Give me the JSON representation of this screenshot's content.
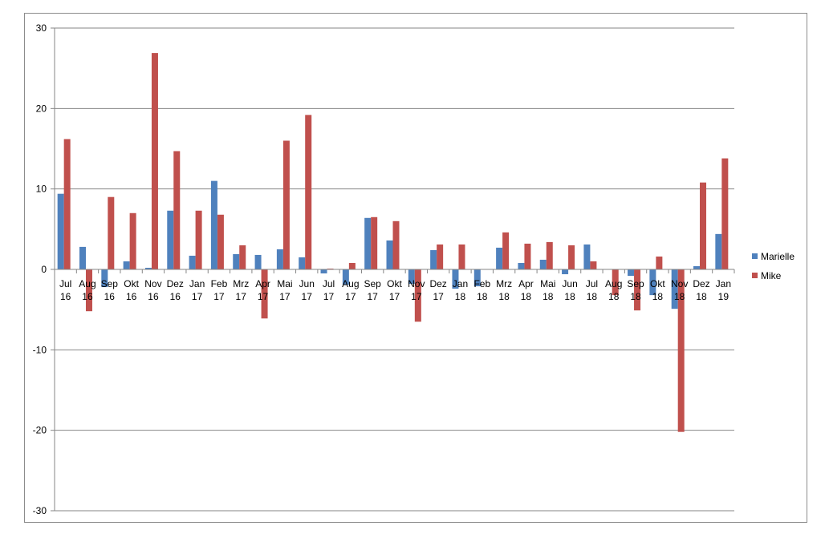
{
  "chart_data": {
    "type": "bar",
    "title": "",
    "xlabel": "",
    "ylabel": "",
    "ylim": [
      -30,
      30
    ],
    "yticks": [
      30,
      20,
      10,
      0,
      -10,
      -20,
      -30
    ],
    "grid": true,
    "legend_position": "right",
    "categories": [
      [
        "Jul",
        "16"
      ],
      [
        "Aug",
        "16"
      ],
      [
        "Sep",
        "16"
      ],
      [
        "Okt",
        "16"
      ],
      [
        "Nov",
        "16"
      ],
      [
        "Dez",
        "16"
      ],
      [
        "Jan",
        "17"
      ],
      [
        "Feb",
        "17"
      ],
      [
        "Mrz",
        "17"
      ],
      [
        "Apr",
        "17"
      ],
      [
        "Mai",
        "17"
      ],
      [
        "Jun",
        "17"
      ],
      [
        "Jul",
        "17"
      ],
      [
        "Aug",
        "17"
      ],
      [
        "Sep",
        "17"
      ],
      [
        "Okt",
        "17"
      ],
      [
        "Nov",
        "17"
      ],
      [
        "Dez",
        "17"
      ],
      [
        "Jan",
        "18"
      ],
      [
        "Feb",
        "18"
      ],
      [
        "Mrz",
        "18"
      ],
      [
        "Apr",
        "18"
      ],
      [
        "Mai",
        "18"
      ],
      [
        "Jun",
        "18"
      ],
      [
        "Jul",
        "18"
      ],
      [
        "Aug",
        "18"
      ],
      [
        "Sep",
        "18"
      ],
      [
        "Okt",
        "18"
      ],
      [
        "Nov",
        "18"
      ],
      [
        "Dez",
        "18"
      ],
      [
        "Jan",
        "19"
      ]
    ],
    "series": [
      {
        "name": "Marielle",
        "color": "#4f81bd",
        "values": [
          9.4,
          2.8,
          -2.2,
          1.0,
          0.2,
          7.3,
          1.7,
          11.0,
          1.9,
          1.8,
          2.5,
          1.5,
          -0.5,
          -1.9,
          6.4,
          3.6,
          -1.8,
          2.4,
          -2.4,
          -2.1,
          2.7,
          0.8,
          1.2,
          -0.6,
          3.1,
          0.0,
          -0.8,
          -3.2,
          -4.9,
          0.4,
          4.4
        ]
      },
      {
        "name": "Mike",
        "color": "#c0504d",
        "values": [
          16.2,
          -5.2,
          9.0,
          7.0,
          26.9,
          14.7,
          7.3,
          6.8,
          3.0,
          -6.1,
          16.0,
          19.2,
          0.1,
          0.8,
          6.5,
          6.0,
          -6.5,
          3.1,
          3.1,
          0.0,
          4.6,
          3.2,
          3.4,
          3.0,
          1.0,
          -3.2,
          -5.1,
          1.6,
          -20.2,
          10.8,
          13.8
        ]
      }
    ]
  }
}
